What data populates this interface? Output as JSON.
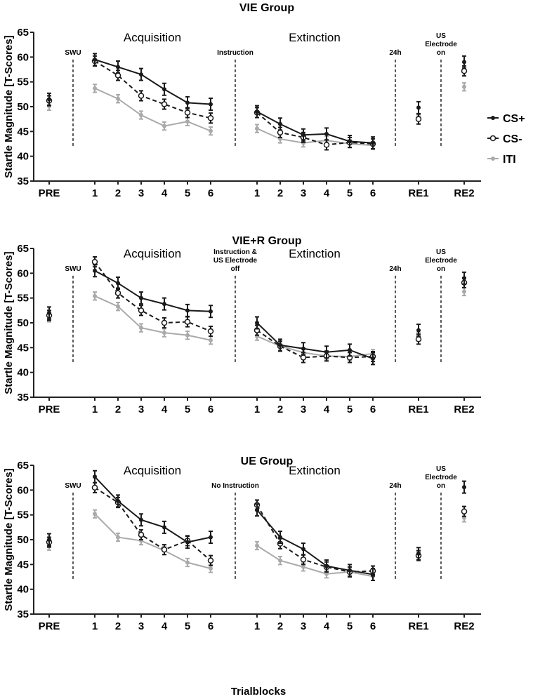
{
  "chart_data": [
    {
      "type": "line",
      "title": "VIE Group",
      "ylabel": "Startle Magnitude [T-Scores]",
      "ylim": [
        35,
        65
      ],
      "yticks": [
        35,
        40,
        45,
        50,
        55,
        60,
        65
      ],
      "categories": [
        "PRE",
        "1",
        "2",
        "3",
        "4",
        "5",
        "6",
        "1",
        "2",
        "3",
        "4",
        "5",
        "6",
        "RE1",
        "RE2"
      ],
      "phases": [
        "Acquisition",
        "Extinction"
      ],
      "annotations": [
        "SWU",
        "Instruction",
        "24h",
        "US Electrode on"
      ],
      "series": [
        {
          "name": "CS+",
          "color": "#1a1a1a",
          "values": [
            51.5,
            59.5,
            58,
            56.5,
            53.5,
            50.8,
            50.5,
            49,
            46.5,
            44.3,
            44.5,
            43,
            42.7,
            49.8,
            59
          ],
          "error": 1.2
        },
        {
          "name": "CS-",
          "color": "#1a1a1a",
          "values": [
            51.2,
            59.2,
            56.3,
            52.2,
            50.5,
            48.8,
            47.7,
            48.8,
            44.8,
            43.8,
            42.3,
            42.8,
            42.5,
            47.5,
            57.2
          ],
          "error": 1.0
        },
        {
          "name": "ITI",
          "color": "#aaaaaa",
          "values": [
            50.1,
            53.7,
            51.6,
            48.3,
            46.1,
            47,
            45.1,
            45.6,
            43.5,
            42.7,
            43.2,
            42.5,
            42.2,
            47.3,
            54
          ],
          "error": 0.8
        }
      ]
    },
    {
      "type": "line",
      "title": "VIE+R Group",
      "ylabel": "Startle Magnitude [T-Scores]",
      "ylim": [
        35,
        65
      ],
      "yticks": [
        35,
        40,
        45,
        50,
        55,
        60,
        65
      ],
      "categories": [
        "PRE",
        "1",
        "2",
        "3",
        "4",
        "5",
        "6",
        "1",
        "2",
        "3",
        "4",
        "5",
        "6",
        "RE1",
        "RE2"
      ],
      "phases": [
        "Acquisition",
        "Extinction"
      ],
      "annotations": [
        "SWU",
        "Instruction & US Electrode off",
        "24h",
        "US Electrode on"
      ],
      "series": [
        {
          "name": "CS+",
          "color": "#1a1a1a",
          "values": [
            52,
            60.5,
            58,
            55,
            53.8,
            52.5,
            52.3,
            50,
            45.5,
            44.8,
            44.1,
            44.5,
            42.8,
            48.5,
            59
          ],
          "error": 1.2
        },
        {
          "name": "CS-",
          "color": "#1a1a1a",
          "values": [
            51.5,
            62.3,
            56,
            52.5,
            50,
            50.2,
            48.3,
            48.5,
            45.3,
            43,
            43.3,
            43,
            43.2,
            46.7,
            58.1
          ],
          "error": 1.0
        },
        {
          "name": "ITI",
          "color": "#aaaaaa",
          "values": [
            51,
            55.4,
            53.3,
            49,
            48,
            47.5,
            46.5,
            47.3,
            45.3,
            44,
            43.3,
            43.2,
            43.8,
            47.2,
            56.3
          ],
          "error": 0.8
        }
      ]
    },
    {
      "type": "line",
      "title": "UE Group",
      "ylabel": "Startle Magnitude [T-Scores]",
      "xlabel": "Trialblocks",
      "ylim": [
        35,
        65
      ],
      "yticks": [
        35,
        40,
        45,
        50,
        55,
        60,
        65
      ],
      "categories": [
        "PRE",
        "1",
        "2",
        "3",
        "4",
        "5",
        "6",
        "1",
        "2",
        "3",
        "4",
        "5",
        "6",
        "RE1",
        "RE2"
      ],
      "phases": [
        "Acquisition",
        "Extinction"
      ],
      "annotations": [
        "SWU",
        "No Instruction",
        "24h",
        "US Electrode on"
      ],
      "series": [
        {
          "name": "CS+",
          "color": "#1a1a1a",
          "values": [
            50,
            62.7,
            57.8,
            54,
            52.5,
            49.5,
            50.5,
            56,
            50.5,
            48.1,
            44.7,
            43.8,
            43,
            47.2,
            60.6
          ],
          "error": 1.2
        },
        {
          "name": "CS-",
          "color": "#1a1a1a",
          "values": [
            49.5,
            60.5,
            57.5,
            51,
            48,
            49.8,
            45.8,
            57,
            49.2,
            46,
            44.5,
            43.5,
            43.7,
            46.8,
            55.7
          ],
          "error": 1.0
        },
        {
          "name": "ITI",
          "color": "#aaaaaa",
          "values": [
            48.7,
            55.2,
            50.5,
            49.8,
            47.8,
            45.4,
            44.2,
            48.8,
            45.8,
            44.5,
            43.1,
            43.5,
            42.6,
            47.6,
            54.4
          ],
          "error": 0.8
        }
      ]
    }
  ],
  "legend": {
    "position": "right",
    "items": [
      "CS+",
      "CS-",
      "ITI"
    ]
  },
  "xlabel": "Trialblocks"
}
